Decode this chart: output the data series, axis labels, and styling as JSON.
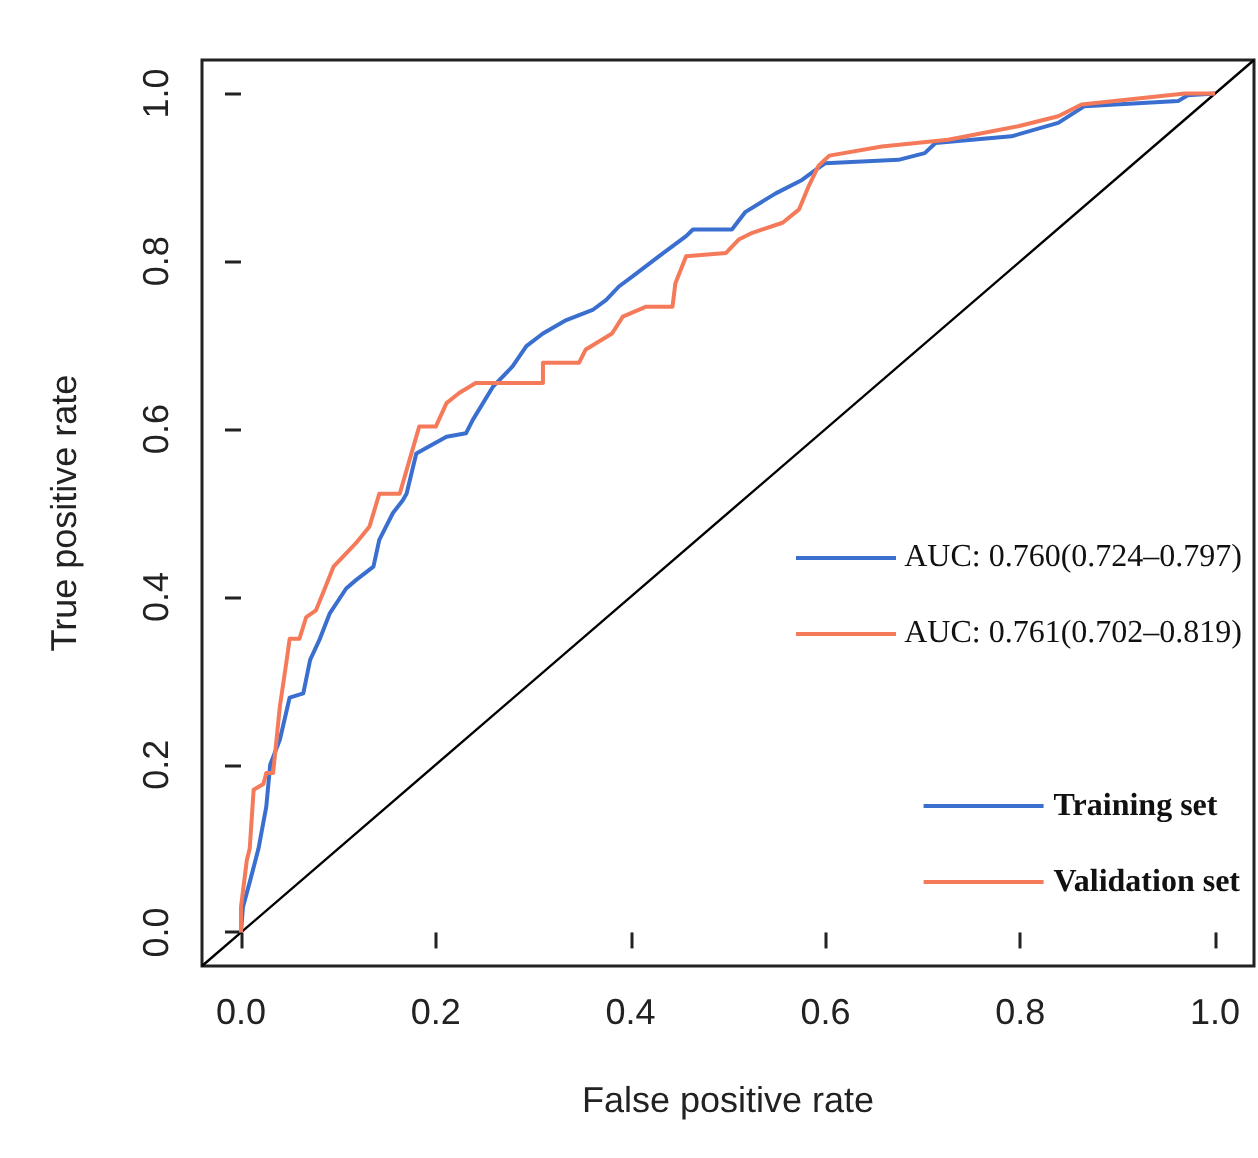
{
  "chart_data": {
    "type": "line",
    "xlabel": "False positive rate",
    "ylabel": "True positive rate",
    "xlim": [
      -0.04,
      1.04
    ],
    "ylim": [
      -0.04,
      1.04
    ],
    "xticks": [
      {
        "value": 0,
        "label": "0.0"
      },
      {
        "value": 0.2,
        "label": "0.2"
      },
      {
        "value": 0.4,
        "label": "0.4"
      },
      {
        "value": 0.6,
        "label": "0.6"
      },
      {
        "value": 0.8,
        "label": "0.8"
      },
      {
        "value": 1,
        "label": "1.0"
      }
    ],
    "yticks": [
      {
        "value": 0,
        "label": "0.0"
      },
      {
        "value": 0.2,
        "label": "0.2"
      },
      {
        "value": 0.4,
        "label": "0.4"
      },
      {
        "value": 0.6,
        "label": "0.6"
      },
      {
        "value": 0.8,
        "label": "0.8"
      },
      {
        "value": 1,
        "label": "1.0"
      }
    ],
    "grid": false,
    "legend": "bottom right",
    "marker": "none",
    "line_style": "solid",
    "annotations": [
      "AUC: 0.760(0.724–0.797)",
      "AUC: 0.761(0.702–0.819)"
    ],
    "series": [
      {
        "name": "Training set",
        "color": "#3a6fd0",
        "x": [
          0,
          0.002,
          0.009,
          0.018,
          0.026,
          0.03,
          0.04,
          0.05,
          0.064,
          0.071,
          0.081,
          0.091,
          0.108,
          0.118,
          0.136,
          0.142,
          0.156,
          0.166,
          0.17,
          0.18,
          0.211,
          0.231,
          0.238,
          0.259,
          0.279,
          0.293,
          0.31,
          0.334,
          0.361,
          0.375,
          0.388,
          0.402,
          0.429,
          0.457,
          0.464,
          0.504,
          0.518,
          0.549,
          0.576,
          0.59,
          0.6,
          0.675,
          0.702,
          0.713,
          0.791,
          0.839,
          0.866,
          0.962,
          0.972,
          1
        ],
        "values": [
          0,
          0.03,
          0.06,
          0.1,
          0.15,
          0.2,
          0.23,
          0.28,
          0.285,
          0.325,
          0.35,
          0.38,
          0.41,
          0.42,
          0.436,
          0.468,
          0.5,
          0.515,
          0.523,
          0.571,
          0.591,
          0.595,
          0.611,
          0.651,
          0.675,
          0.699,
          0.714,
          0.73,
          0.742,
          0.754,
          0.77,
          0.782,
          0.806,
          0.83,
          0.838,
          0.838,
          0.859,
          0.881,
          0.897,
          0.909,
          0.917,
          0.921,
          0.929,
          0.941,
          0.949,
          0.965,
          0.985,
          0.991,
          0.998,
          1
        ]
      },
      {
        "name": "Validation set",
        "color": "#f47a5a",
        "x": [
          0,
          0,
          0.006,
          0.009,
          0.013,
          0.023,
          0.026,
          0.033,
          0.04,
          0.047,
          0.05,
          0.06,
          0.067,
          0.077,
          0.084,
          0.095,
          0.108,
          0.118,
          0.132,
          0.142,
          0.163,
          0.173,
          0.183,
          0.2,
          0.211,
          0.224,
          0.241,
          0.31,
          0.31,
          0.347,
          0.354,
          0.381,
          0.392,
          0.416,
          0.443,
          0.446,
          0.457,
          0.498,
          0.511,
          0.525,
          0.556,
          0.573,
          0.583,
          0.593,
          0.604,
          0.658,
          0.726,
          0.798,
          0.839,
          0.863,
          0.969,
          1
        ],
        "values": [
          0,
          0.03,
          0.086,
          0.1,
          0.17,
          0.177,
          0.19,
          0.19,
          0.27,
          0.325,
          0.35,
          0.35,
          0.376,
          0.384,
          0.404,
          0.436,
          0.452,
          0.464,
          0.484,
          0.523,
          0.523,
          0.563,
          0.603,
          0.603,
          0.631,
          0.643,
          0.655,
          0.655,
          0.679,
          0.679,
          0.695,
          0.714,
          0.734,
          0.746,
          0.746,
          0.774,
          0.806,
          0.81,
          0.826,
          0.834,
          0.846,
          0.862,
          0.89,
          0.914,
          0.926,
          0.937,
          0.945,
          0.961,
          0.973,
          0.987,
          1,
          1
        ]
      },
      {
        "color": "#000000",
        "x": [
          -0.04,
          1.04
        ],
        "values": [
          -0.04,
          1.04
        ]
      }
    ]
  }
}
